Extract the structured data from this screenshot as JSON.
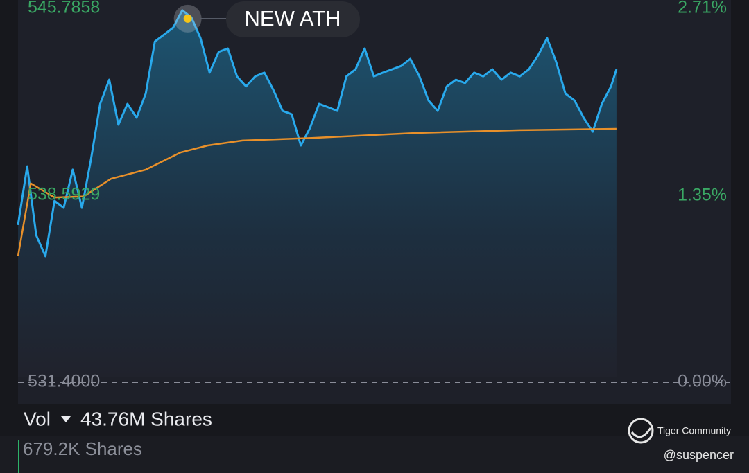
{
  "chart_data": {
    "type": "line",
    "xlim": [
      0,
      390
    ],
    "ylim": [
      531.4,
      545.7858
    ],
    "yticks": [
      {
        "value": 531.4,
        "label": "531.4000"
      },
      538.5929,
      545.7858
    ],
    "y2lim": [
      0,
      2.71
    ],
    "y2ticks": [
      {
        "value": 0,
        "label": "0.00%"
      },
      {
        "value": 1.35,
        "label": "1.35%"
      },
      {
        "value": 2.71,
        "label": "2.71%"
      }
    ],
    "series": [
      {
        "color": "#29a9ec",
        "x": [
          0,
          5,
          10,
          15,
          20,
          25,
          30,
          35,
          40,
          45,
          50,
          55,
          60,
          65,
          70,
          75,
          80,
          85,
          90,
          95,
          100,
          105,
          110,
          115,
          120,
          125,
          130,
          135,
          140,
          145,
          150,
          155,
          160,
          165,
          170,
          175,
          180,
          185,
          190,
          195,
          200,
          205,
          210,
          215,
          220,
          225,
          230,
          235,
          240,
          245,
          250,
          255,
          260,
          265,
          270,
          275,
          280,
          285,
          290,
          295,
          300,
          305,
          310,
          315,
          320,
          325,
          328
        ],
        "values": [
          537.45,
          539.71,
          537.05,
          536.25,
          538.38,
          538.11,
          539.58,
          538.11,
          539.98,
          542.11,
          543.04,
          541.31,
          542.11,
          541.58,
          542.51,
          544.51,
          544.77,
          545.04,
          545.71,
          545.44,
          544.64,
          543.31,
          544.11,
          544.24,
          543.17,
          542.78,
          543.17,
          543.31,
          542.64,
          541.84,
          541.71,
          540.51,
          541.18,
          542.11,
          541.98,
          541.84,
          543.17,
          543.44,
          544.24,
          543.17,
          543.31,
          543.44,
          543.57,
          543.84,
          543.17,
          542.24,
          541.84,
          542.78,
          543.04,
          542.91,
          543.31,
          543.17,
          543.44,
          543.04,
          543.31,
          543.17,
          543.44,
          543.97,
          544.64,
          543.71,
          542.51,
          542.24,
          541.58,
          541.04,
          542.11,
          542.78,
          543.44
        ]
      },
      {
        "color": "#e8902a",
        "x": [
          0,
          7,
          20,
          36,
          51,
          70,
          89,
          104,
          123,
          161,
          218,
          275,
          328
        ],
        "values": [
          536.25,
          539.05,
          538.51,
          538.55,
          539.23,
          539.58,
          540.24,
          540.51,
          540.7,
          540.8,
          540.99,
          541.1,
          541.15
        ]
      }
    ],
    "annotations": [
      {
        "text": "NEW ATH",
        "x": 93,
        "y": 545.39
      }
    ]
  },
  "volume": {
    "label": "Vol",
    "total": "43.76M Shares",
    "current": "679.2K Shares"
  },
  "watermark": {
    "brand": "Tiger Community",
    "user": "@suspencer"
  }
}
